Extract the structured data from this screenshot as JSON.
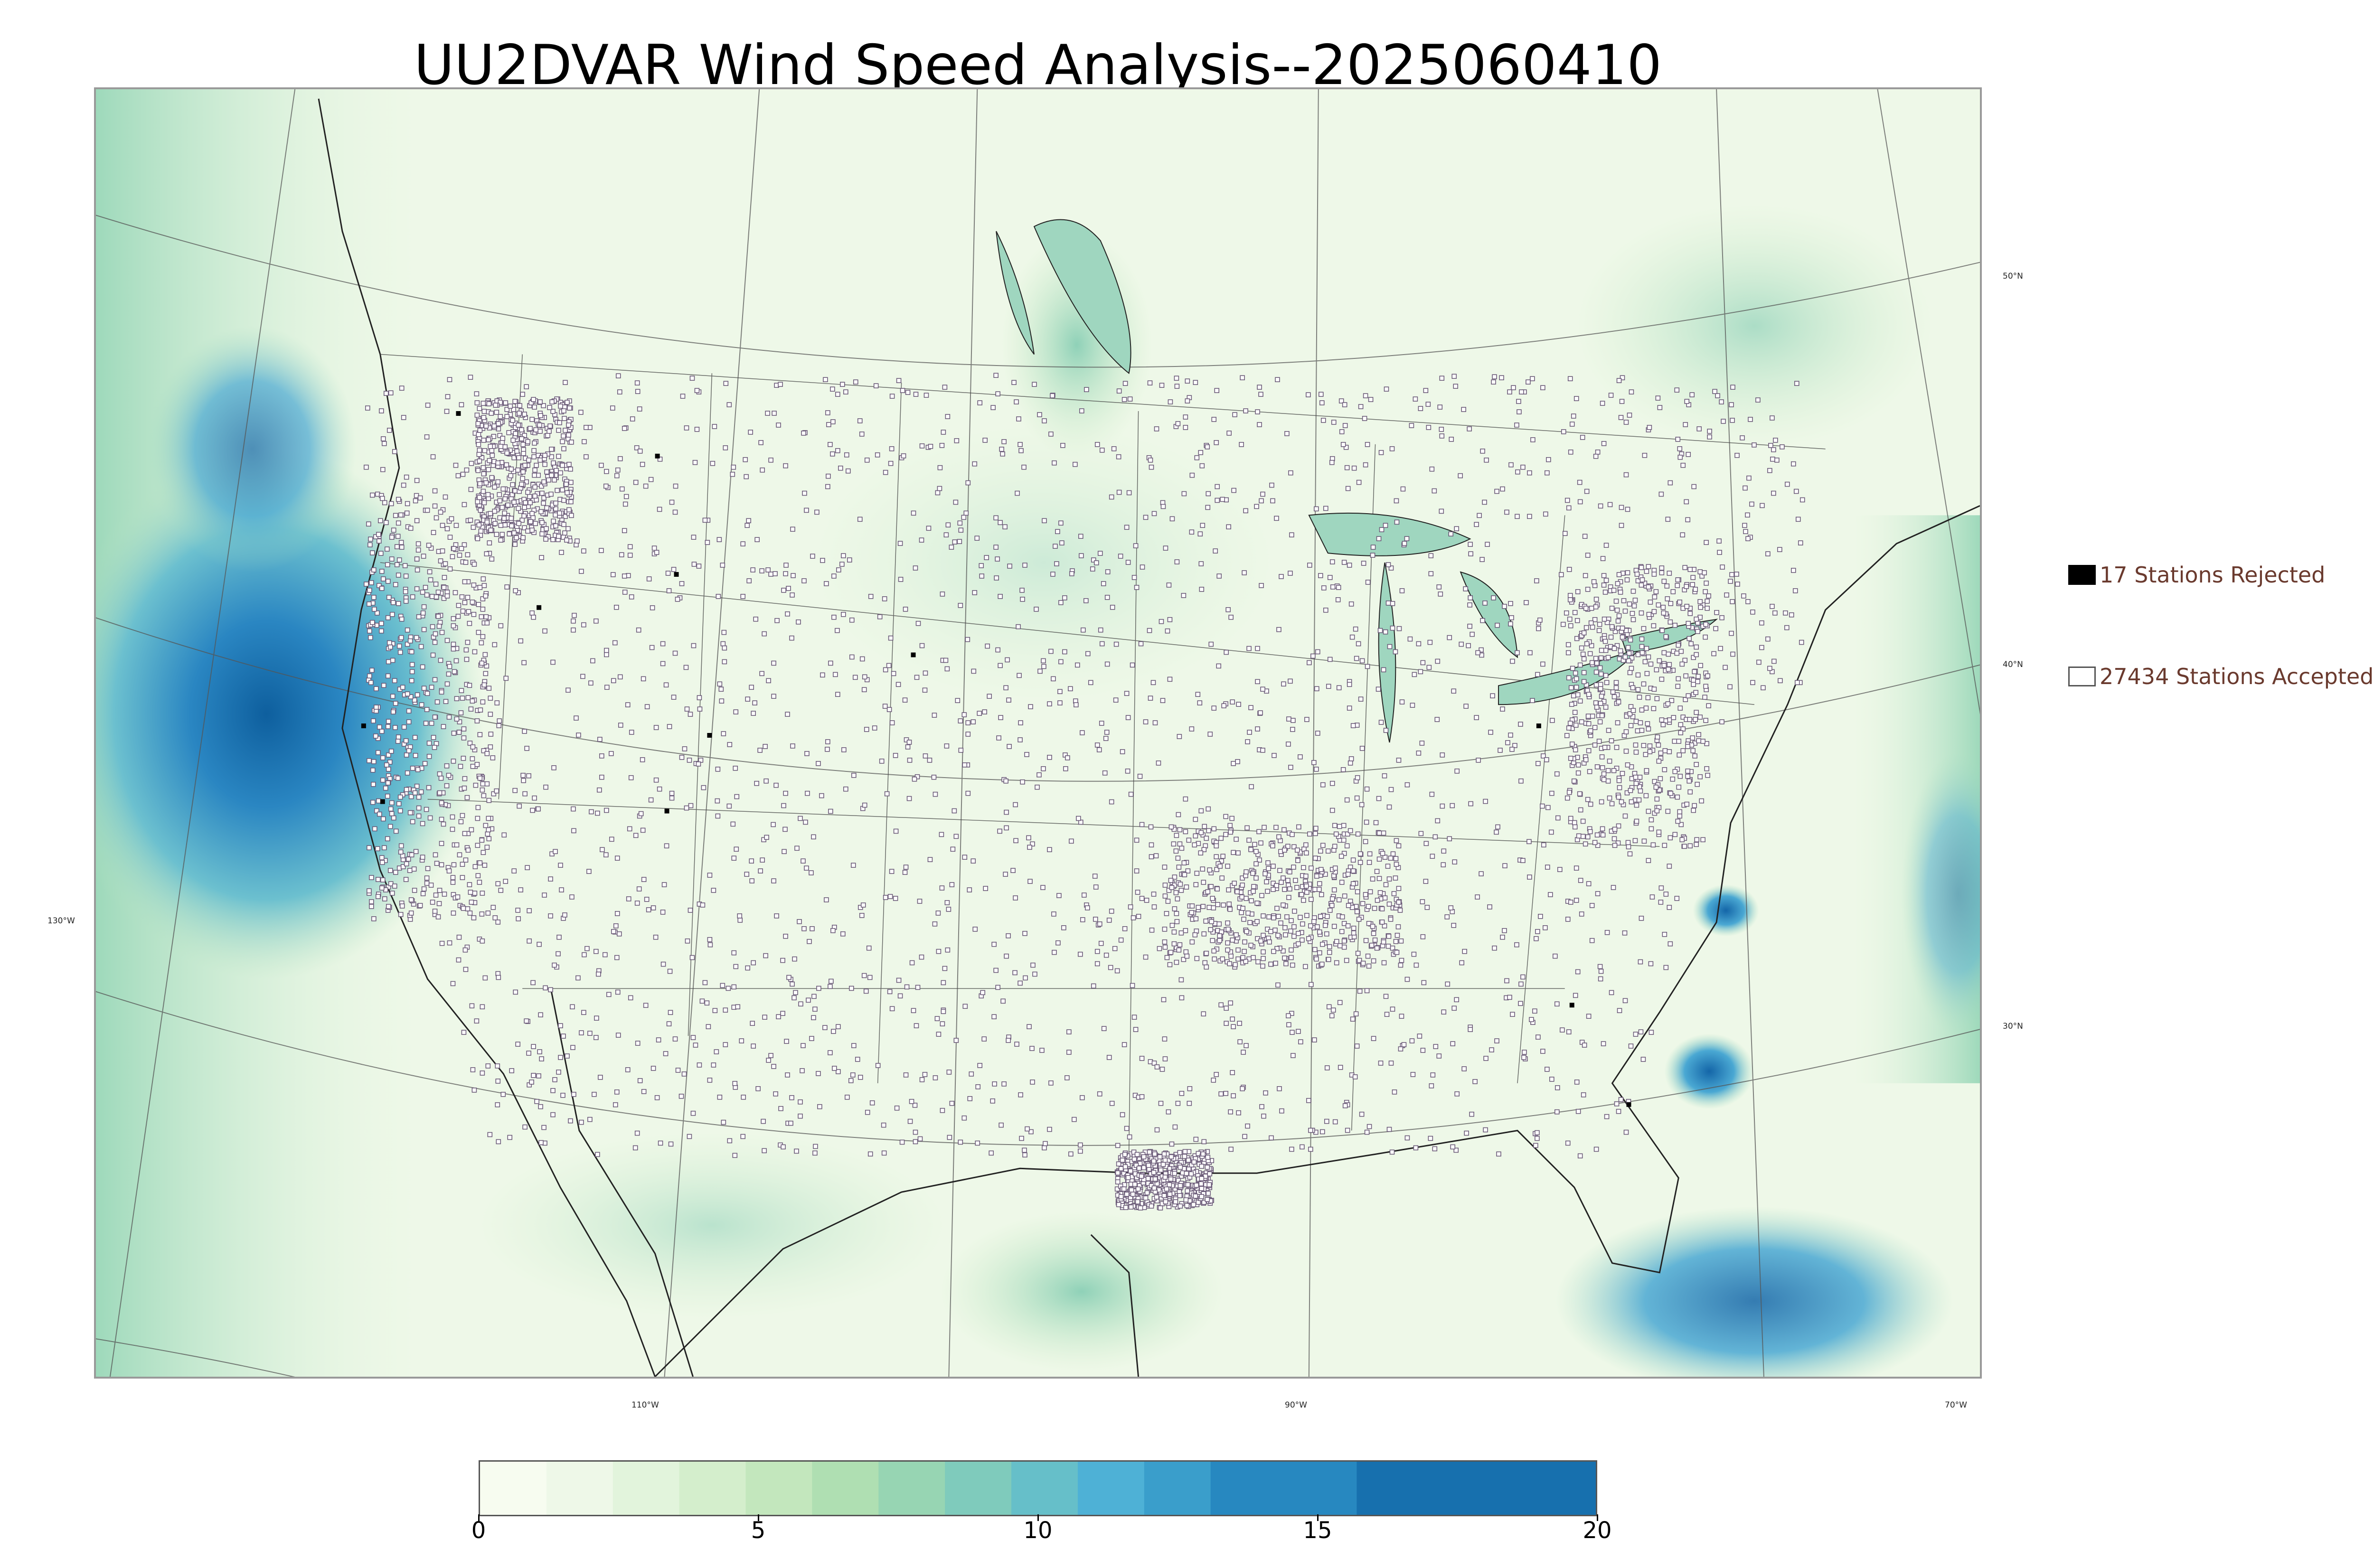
{
  "title": "UU2DVAR Wind Speed Analysis--2025060410",
  "map": {
    "lat_labels": [
      "50°N",
      "40°N",
      "30°N"
    ],
    "lon_labels": [
      "130°W",
      "110°W",
      "90°W",
      "70°W"
    ],
    "field_color_low": "#f7fcf0",
    "field_color_high": "#0e5f9e"
  },
  "legend": {
    "rejected_label": "17 Stations Rejected",
    "accepted_label": "27434 Stations Accepted",
    "rejected_color": "#000000",
    "accepted_color": "#ffffff"
  },
  "colorbar": {
    "min": 0,
    "max": 20,
    "ticks": [
      "0",
      "5",
      "10",
      "15",
      "20"
    ],
    "colors": [
      "#f7fcf0",
      "#eef8e8",
      "#e2f4dc",
      "#d4eecc",
      "#c3e7bd",
      "#afdfb2",
      "#97d5b3",
      "#7fcbbc",
      "#66bfc9",
      "#4eb1d6",
      "#3a9ecb",
      "#2788c0",
      "#1770ae"
    ]
  }
}
